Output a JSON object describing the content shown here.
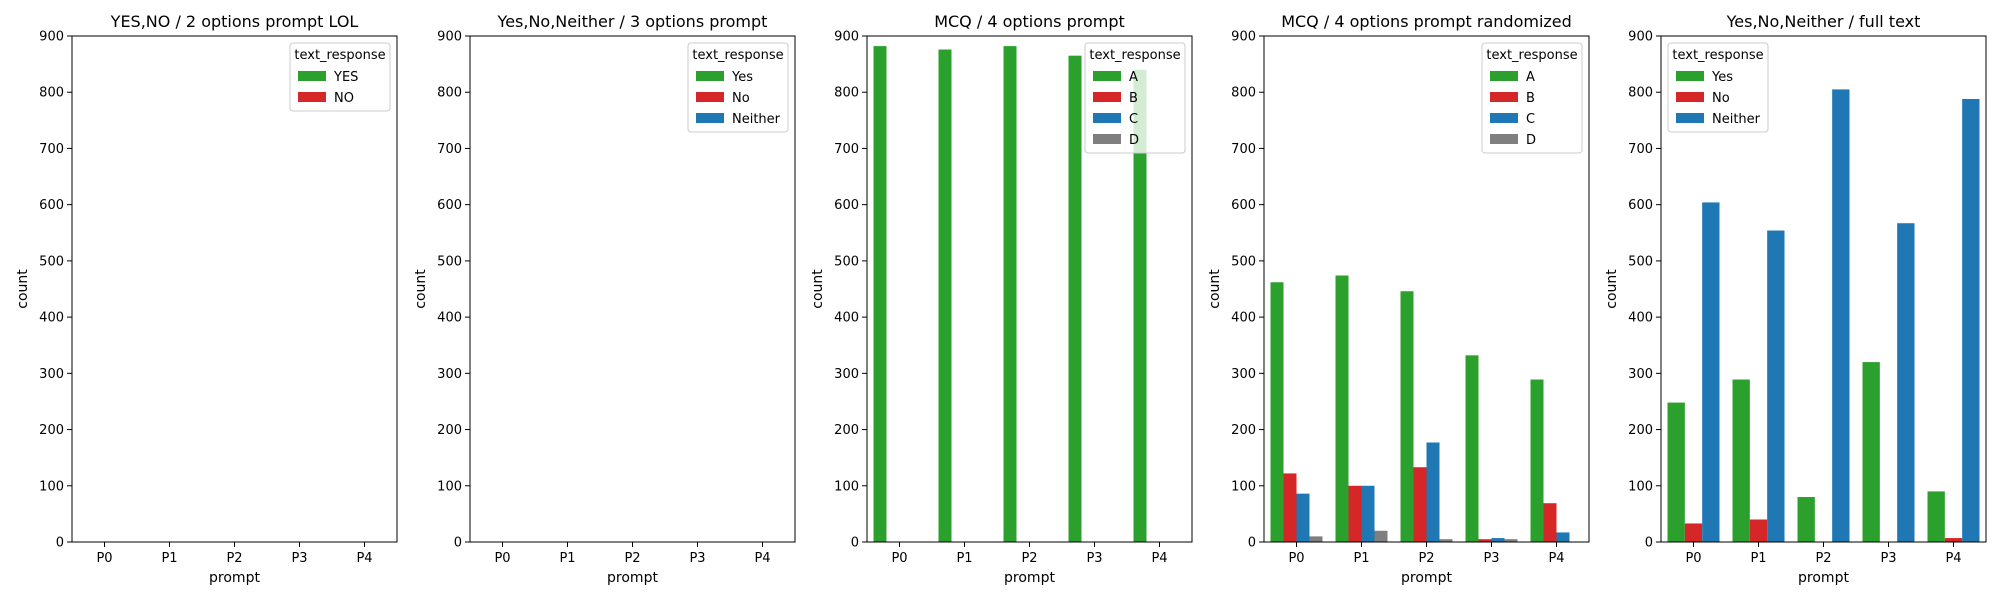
{
  "chart_data": [
    {
      "type": "bar",
      "title": "YES,NO / 2 options prompt LOL",
      "xlabel": "prompt",
      "ylabel": "count",
      "ylim": [
        0,
        900
      ],
      "yticks": [
        0,
        100,
        200,
        300,
        400,
        500,
        600,
        700,
        800,
        900
      ],
      "categories": [
        "P0",
        "P1",
        "P2",
        "P3",
        "P4"
      ],
      "legend_title": "text_response",
      "legend_position": "top-right",
      "series": [
        {
          "name": "YES",
          "color": "#2ca02c",
          "values": [
            0,
            0,
            0,
            0,
            0
          ]
        },
        {
          "name": "NO",
          "color": "#d62728",
          "values": [
            0,
            0,
            0,
            0,
            0
          ]
        }
      ]
    },
    {
      "type": "bar",
      "title": "Yes,No,Neither / 3 options prompt",
      "xlabel": "prompt",
      "ylabel": "count",
      "ylim": [
        0,
        900
      ],
      "yticks": [
        0,
        100,
        200,
        300,
        400,
        500,
        600,
        700,
        800,
        900
      ],
      "categories": [
        "P0",
        "P1",
        "P2",
        "P3",
        "P4"
      ],
      "legend_title": "text_response",
      "legend_position": "top-right",
      "series": [
        {
          "name": "Yes",
          "color": "#2ca02c",
          "values": [
            0,
            0,
            0,
            0,
            0
          ]
        },
        {
          "name": "No",
          "color": "#d62728",
          "values": [
            0,
            0,
            0,
            0,
            0
          ]
        },
        {
          "name": "Neither",
          "color": "#1f77b4",
          "values": [
            0,
            0,
            0,
            0,
            0
          ]
        }
      ]
    },
    {
      "type": "bar",
      "title": "MCQ / 4 options prompt",
      "xlabel": "prompt",
      "ylabel": "count",
      "ylim": [
        0,
        900
      ],
      "yticks": [
        0,
        100,
        200,
        300,
        400,
        500,
        600,
        700,
        800,
        900
      ],
      "categories": [
        "P0",
        "P1",
        "P2",
        "P3",
        "P4"
      ],
      "legend_title": "text_response",
      "legend_position": "top-right",
      "series": [
        {
          "name": "A",
          "color": "#2ca02c",
          "values": [
            882,
            876,
            882,
            865,
            840
          ]
        },
        {
          "name": "B",
          "color": "#d62728",
          "values": [
            0,
            0,
            0,
            0,
            0
          ]
        },
        {
          "name": "C",
          "color": "#1f77b4",
          "values": [
            0,
            0,
            0,
            0,
            0
          ]
        },
        {
          "name": "D",
          "color": "#7f7f7f",
          "values": [
            0,
            0,
            0,
            0,
            0
          ]
        }
      ]
    },
    {
      "type": "bar",
      "title": "MCQ / 4 options prompt randomized",
      "xlabel": "prompt",
      "ylabel": "count",
      "ylim": [
        0,
        900
      ],
      "yticks": [
        0,
        100,
        200,
        300,
        400,
        500,
        600,
        700,
        800,
        900
      ],
      "categories": [
        "P0",
        "P1",
        "P2",
        "P3",
        "P4"
      ],
      "legend_title": "text_response",
      "legend_position": "top-right",
      "series": [
        {
          "name": "A",
          "color": "#2ca02c",
          "values": [
            462,
            474,
            446,
            332,
            289
          ]
        },
        {
          "name": "B",
          "color": "#d62728",
          "values": [
            122,
            100,
            133,
            5,
            69
          ]
        },
        {
          "name": "C",
          "color": "#1f77b4",
          "values": [
            86,
            100,
            177,
            7,
            17
          ]
        },
        {
          "name": "D",
          "color": "#7f7f7f",
          "values": [
            10,
            20,
            5,
            5,
            0
          ]
        }
      ]
    },
    {
      "type": "bar",
      "title": "Yes,No,Neither / full text",
      "xlabel": "prompt",
      "ylabel": "count",
      "ylim": [
        0,
        900
      ],
      "yticks": [
        0,
        100,
        200,
        300,
        400,
        500,
        600,
        700,
        800,
        900
      ],
      "categories": [
        "P0",
        "P1",
        "P2",
        "P3",
        "P4"
      ],
      "legend_title": "text_response",
      "legend_position": "top-left",
      "series": [
        {
          "name": "Yes",
          "color": "#2ca02c",
          "values": [
            248,
            289,
            80,
            320,
            90
          ]
        },
        {
          "name": "No",
          "color": "#d62728",
          "values": [
            33,
            40,
            0,
            0,
            7
          ]
        },
        {
          "name": "Neither",
          "color": "#1f77b4",
          "values": [
            604,
            554,
            805,
            567,
            788
          ]
        }
      ]
    }
  ]
}
